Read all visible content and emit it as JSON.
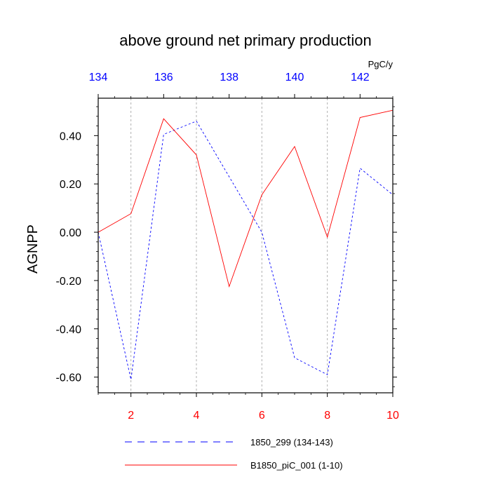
{
  "chart_data": {
    "type": "line",
    "title": "above ground net primary production",
    "ylabel": "AGNPP",
    "top_axis_units": "PgC/y",
    "ylim": [
      -0.665,
      0.555
    ],
    "yticks": [
      -0.6,
      -0.4,
      -0.2,
      0.0,
      0.2,
      0.4
    ],
    "ytick_labels": [
      "-0.60",
      "-0.40",
      "-0.20",
      "0.00",
      "0.20",
      "0.40"
    ],
    "bottom_axis": {
      "range": [
        1,
        10
      ],
      "ticks": [
        2,
        4,
        6,
        8,
        10
      ],
      "tick_labels": [
        "2",
        "4",
        "6",
        "8",
        "10"
      ],
      "color": "#ff0000"
    },
    "top_axis": {
      "range": [
        134,
        143
      ],
      "ticks": [
        134,
        136,
        138,
        140,
        142
      ],
      "tick_labels": [
        "134",
        "136",
        "138",
        "140",
        "142"
      ],
      "color": "#0000ff"
    },
    "grid": "vertical dashed at bottom-axis major ticks",
    "legend_position": "bottom",
    "series": [
      {
        "name": "1850_299 (134-143)",
        "axis": "top",
        "color": "#0000ff",
        "dash": "dashed",
        "x": [
          134,
          135,
          136,
          137,
          138,
          139,
          140,
          141,
          142,
          143
        ],
        "values": [
          0.0,
          -0.61,
          0.405,
          0.46,
          0.23,
          0.0,
          -0.52,
          -0.59,
          0.265,
          0.155
        ]
      },
      {
        "name": "B1850_piC_001 (1-10)",
        "axis": "bottom",
        "color": "#ff0000",
        "dash": "solid",
        "x": [
          1,
          2,
          3,
          4,
          5,
          6,
          7,
          8,
          9,
          10
        ],
        "values": [
          0.0,
          0.077,
          0.47,
          0.32,
          -0.225,
          0.155,
          0.355,
          -0.02,
          0.475,
          0.505
        ]
      }
    ]
  }
}
